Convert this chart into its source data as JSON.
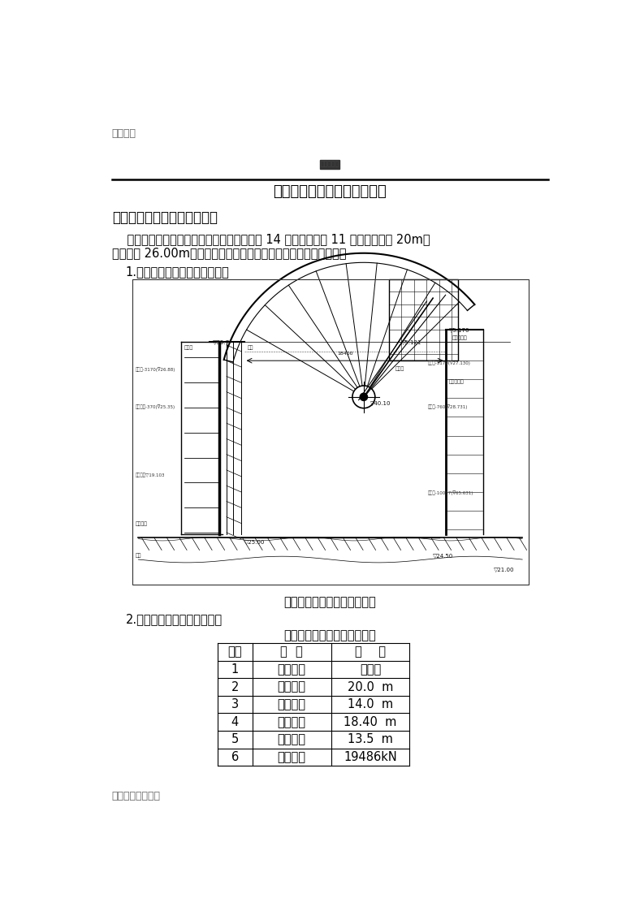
{
  "page_title": "泄洪闸工作闸门安装施工方案",
  "watermark_top": "仅供参考",
  "watermark_bottom": "不是用于商业用途",
  "section1_title": "一．泄洪闸工作闸门基本概况",
  "para_line1": "    泄洪闸坝段布置于河道两侧主槽，左槽布置 14 孔，右槽布置 11 孔，孔口净宽 20m，",
  "para_line2": "堰顶高程 26.00m。挡水采用弧形工作门，由两台液压启闭机启闭。",
  "subsection1": "    1.泄洪闸金属结构剖面布置总图",
  "diagram_caption": "泄洪闸金属结构剖面布置总图",
  "subsection2": "2.泄洪闸工作闸门的主要参数",
  "table_title": "泄洪闸工作闸门的主要参数表",
  "table_headers": [
    "序号",
    "名  称",
    "参    数"
  ],
  "table_rows": [
    [
      "1",
      "闸门型式",
      "露顶式"
    ],
    [
      "2",
      "孔口宽度",
      "20.0  m"
    ],
    [
      "3",
      "闸门高度",
      "14.0  m"
    ],
    [
      "4",
      "支承跨度",
      "18.40  m"
    ],
    [
      "5",
      "设计水头",
      "13.5  m"
    ],
    [
      "6",
      "总水压力",
      "19486kN"
    ]
  ],
  "bg_color": "#ffffff",
  "text_color": "#000000"
}
